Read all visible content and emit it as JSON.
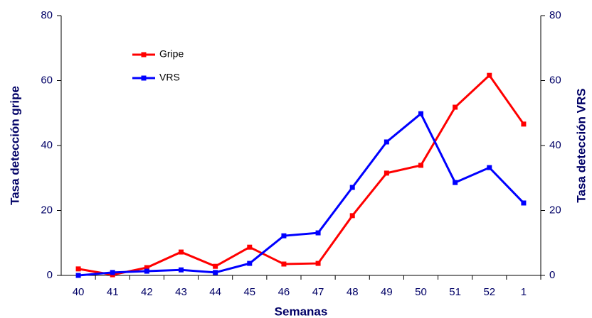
{
  "chart_data": {
    "type": "line",
    "categories": [
      "40",
      "41",
      "42",
      "43",
      "44",
      "45",
      "46",
      "47",
      "48",
      "49",
      "50",
      "51",
      "52",
      "1"
    ],
    "series": [
      {
        "name": "Gripe",
        "color": "#ff0000",
        "values": [
          2.0,
          0.2,
          2.4,
          7.2,
          2.8,
          8.7,
          3.5,
          3.7,
          18.4,
          31.5,
          33.9,
          51.8,
          61.6,
          46.6
        ]
      },
      {
        "name": "VRS",
        "color": "#0000ff",
        "axis": "y2",
        "values": [
          0,
          0.9,
          1.3,
          1.7,
          0.9,
          3.7,
          12.2,
          13.1,
          27.1,
          41.1,
          49.8,
          28.6,
          33.2,
          22.3
        ]
      }
    ],
    "xlabel": "Semanas",
    "ylabel": "Tasa detección gripe",
    "y2label": "Tasa detección VRS",
    "ylim": [
      0,
      80
    ],
    "yticks": [
      0,
      20,
      40,
      60,
      80
    ],
    "y2lim": [
      0,
      80
    ],
    "y2ticks": [
      0,
      20,
      40,
      60,
      80
    ],
    "legend": "upper left",
    "grid": false
  }
}
